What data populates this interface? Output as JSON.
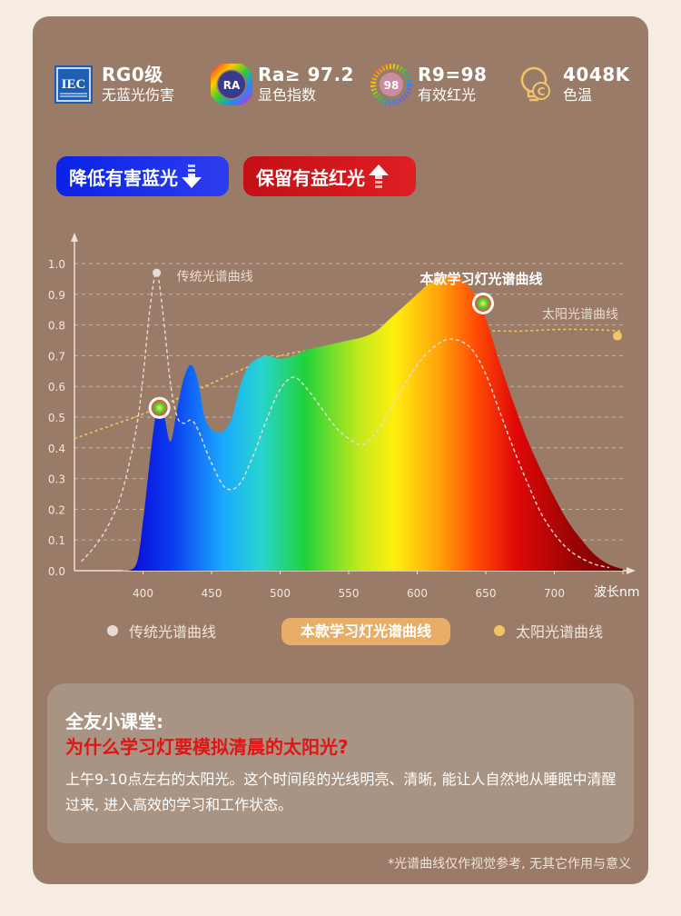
{
  "specs": [
    {
      "icon": "iec-logo-icon",
      "icon_text": "IEC",
      "big": "RG0级",
      "small": "无蓝光伤害"
    },
    {
      "icon": "ra-color-wheel-icon",
      "icon_text": "RA",
      "big": "Ra≥ 97.2",
      "small": "显色指数"
    },
    {
      "icon": "r9-color-ring-icon",
      "icon_text": "98",
      "big": "R9=98",
      "small": "有效红光"
    },
    {
      "icon": "bulb-icon",
      "icon_text": "",
      "big": "4048K",
      "small": "色温"
    }
  ],
  "pills": {
    "blue_label": "降低有害蓝光",
    "red_label": "保留有益红光"
  },
  "chart_data": {
    "type": "area",
    "xlabel": "波长nm",
    "ylabel": "",
    "xlim": [
      350,
      750
    ],
    "ylim": [
      0,
      1.0
    ],
    "x_ticks": [
      400,
      450,
      500,
      550,
      600,
      650,
      700,
      750
    ],
    "y_ticks": [
      "0.0",
      "0.1",
      "0.2",
      "0.3",
      "0.4",
      "0.5",
      "0.6",
      "0.7",
      "0.8",
      "0.9",
      "1.0"
    ],
    "grid": "horizontal dashed",
    "series": [
      {
        "name": "本款学习灯光谱曲线",
        "style": "filled rainbow area",
        "x": [
          385,
          395,
          400,
          405,
          410,
          415,
          420,
          425,
          430,
          435,
          440,
          445,
          450,
          455,
          460,
          465,
          470,
          475,
          480,
          490,
          500,
          510,
          520,
          530,
          540,
          550,
          560,
          570,
          580,
          590,
          600,
          610,
          620,
          625,
          630,
          640,
          650,
          660,
          670,
          680,
          690,
          700,
          710,
          720,
          730,
          740,
          750
        ],
        "y": [
          0.0,
          0.02,
          0.16,
          0.36,
          0.52,
          0.51,
          0.42,
          0.53,
          0.63,
          0.67,
          0.62,
          0.5,
          0.46,
          0.45,
          0.46,
          0.5,
          0.59,
          0.65,
          0.68,
          0.7,
          0.69,
          0.7,
          0.72,
          0.73,
          0.74,
          0.75,
          0.76,
          0.78,
          0.82,
          0.86,
          0.9,
          0.94,
          0.96,
          0.965,
          0.96,
          0.91,
          0.82,
          0.68,
          0.55,
          0.43,
          0.33,
          0.24,
          0.16,
          0.1,
          0.05,
          0.02,
          0.005
        ]
      },
      {
        "name": "传统光谱曲线",
        "style": "white dashed",
        "x": [
          355,
          365,
          375,
          385,
          395,
          400,
          405,
          410,
          415,
          420,
          425,
          430,
          435,
          440,
          450,
          460,
          470,
          480,
          490,
          500,
          510,
          520,
          530,
          540,
          550,
          560,
          570,
          580,
          590,
          600,
          610,
          620,
          630,
          640,
          650,
          660,
          670,
          680,
          690,
          700,
          710,
          720,
          730,
          740
        ],
        "y": [
          0.03,
          0.08,
          0.15,
          0.26,
          0.46,
          0.63,
          0.85,
          0.97,
          0.82,
          0.61,
          0.5,
          0.48,
          0.49,
          0.46,
          0.35,
          0.27,
          0.28,
          0.37,
          0.49,
          0.59,
          0.63,
          0.59,
          0.53,
          0.47,
          0.43,
          0.41,
          0.45,
          0.52,
          0.6,
          0.67,
          0.72,
          0.75,
          0.75,
          0.72,
          0.64,
          0.52,
          0.4,
          0.29,
          0.19,
          0.12,
          0.07,
          0.04,
          0.02,
          0.01
        ]
      },
      {
        "name": "太阳光谱曲线",
        "style": "yellow dashed",
        "x": [
          350,
          375,
          400,
          425,
          450,
          475,
          500,
          525,
          550,
          575,
          600,
          625,
          650,
          675,
          700,
          725,
          750
        ],
        "y": [
          0.43,
          0.47,
          0.51,
          0.56,
          0.61,
          0.66,
          0.7,
          0.72,
          0.74,
          0.75,
          0.76,
          0.77,
          0.78,
          0.78,
          0.785,
          0.785,
          0.78
        ]
      }
    ],
    "annotations": [
      {
        "text": "传统光谱曲线",
        "x": 410,
        "y": 0.97
      },
      {
        "text": "本款学习灯光谱曲线",
        "x": 648,
        "y": 0.87
      },
      {
        "text": "太阳光谱曲线",
        "x": 750,
        "y": 0.8
      }
    ],
    "markers": [
      {
        "series": "本款学习灯光谱曲线",
        "x": 412,
        "y": 0.53
      },
      {
        "series": "本款学习灯光谱曲线",
        "x": 648,
        "y": 0.87
      }
    ],
    "colors": {
      "traditional": "#e8ddd5",
      "sun": "#f1c560",
      "lamp_gradient": [
        "#0000e0",
        "#00a0ff",
        "#22dd33",
        "#ffee00",
        "#ff8800",
        "#ee0000",
        "#880000"
      ]
    }
  },
  "legend": {
    "traditional": "传统光谱曲线",
    "lamp": "本款学习灯光谱曲线",
    "sun": "太阳光谱曲线"
  },
  "tip": {
    "title": "全友小课堂:",
    "question": "为什么学习灯要模拟清晨的太阳光?",
    "body": "上午9-10点左右的太阳光。这个时间段的光线明亮、清晰, 能让人自然地从睡眠中清醒过来, 进入高效的学习和工作状态。"
  },
  "footnote": "*光谱曲线仅作视觉参考, 无其它作用与意义"
}
